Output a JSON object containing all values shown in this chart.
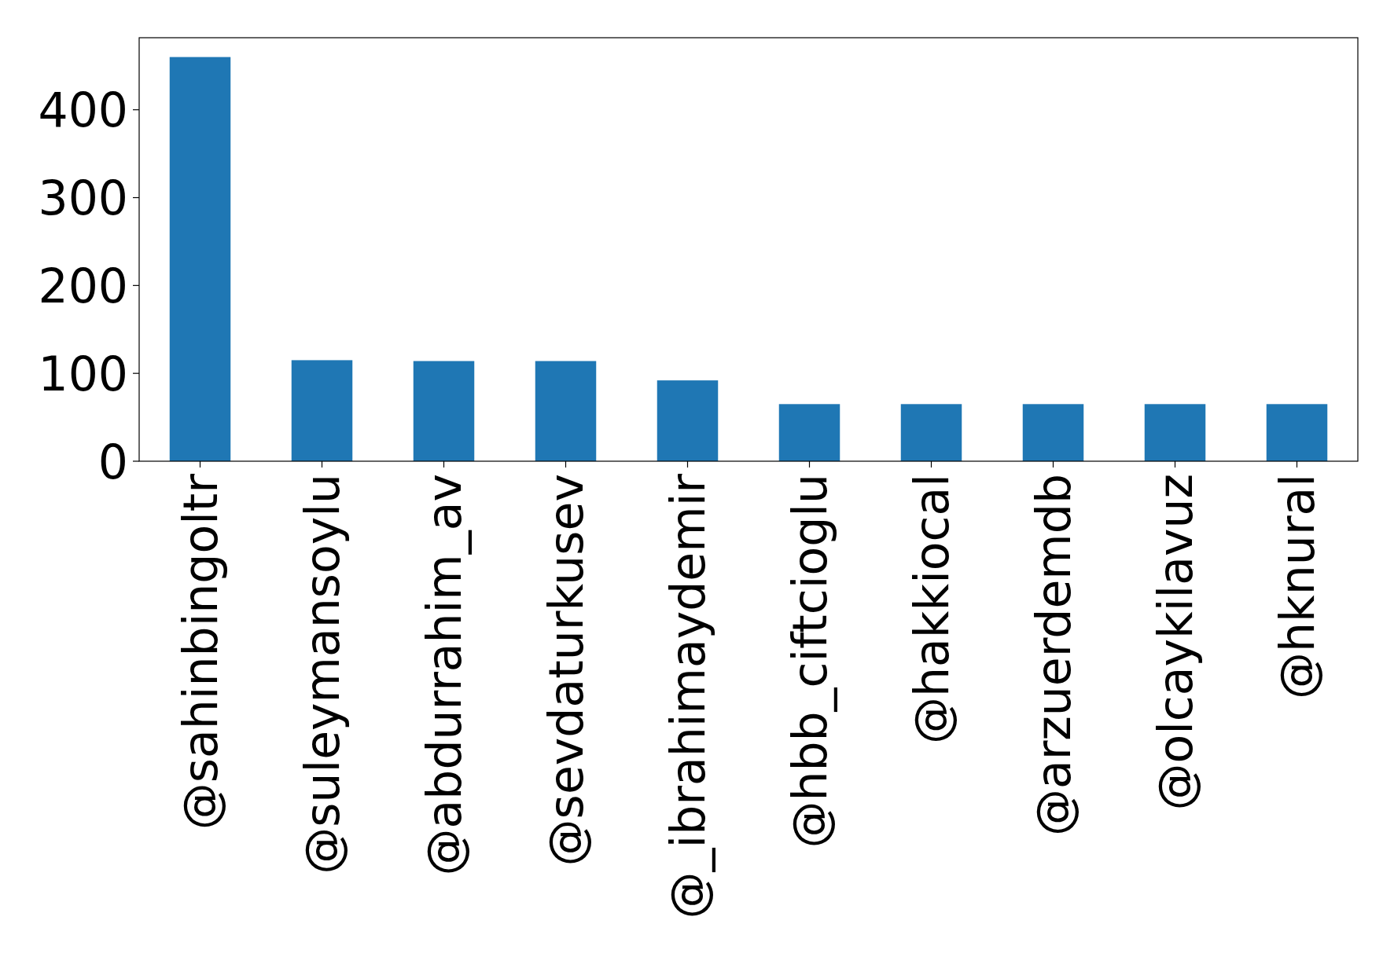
{
  "chart_data": {
    "type": "bar",
    "categories": [
      "@sahinbingoltr",
      "@suleymansoylu",
      "@abdurrahim_av",
      "@sevdaturkusev",
      "@_ibrahimaydemir",
      "@hbb_ciftcioglu",
      "@hakkiocal",
      "@arzuerdemdb",
      "@olcaykilavuz",
      "@hknural"
    ],
    "values": [
      460,
      115,
      114,
      114,
      92,
      65,
      65,
      65,
      65,
      65
    ],
    "color": "#1f77b4",
    "ylim": [
      0,
      482
    ],
    "yticks": [
      0,
      100,
      200,
      300,
      400
    ],
    "grid": false
  }
}
